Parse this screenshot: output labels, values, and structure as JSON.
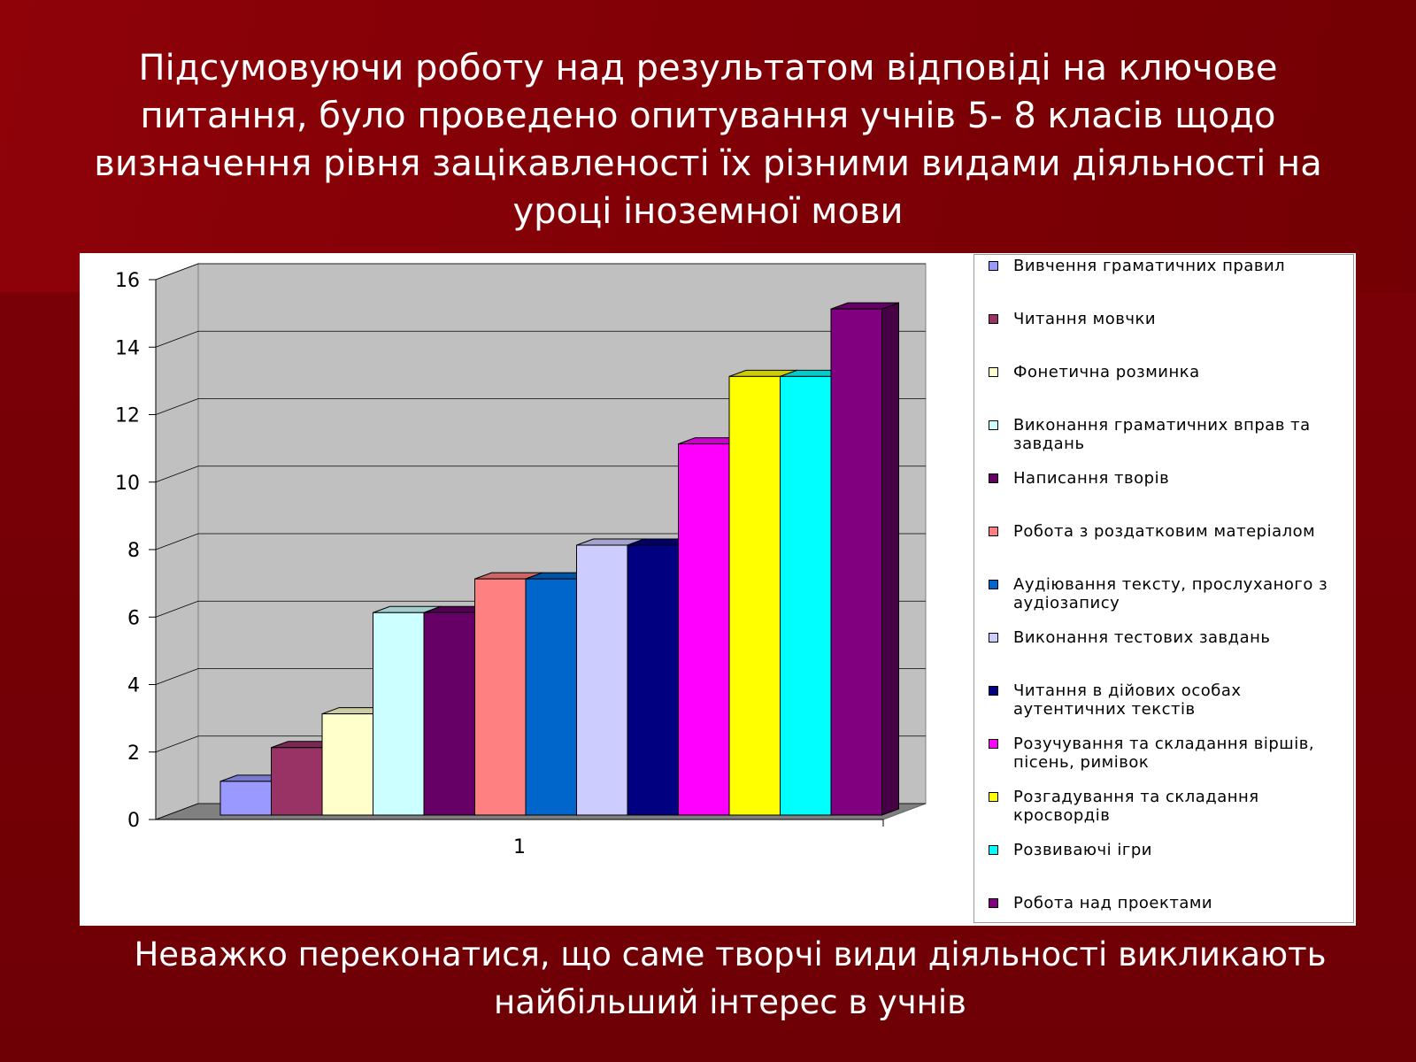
{
  "slide": {
    "title": "Підсумовуючи роботу над результатом відповіді на ключове питання, було проведено опитування учнів 5- 8 класів щодо визначення рівня зацікавленості їх різними видами діяльності на уроці іноземної мови",
    "conclusion": "Неважко переконатися, що саме творчі види діяльності викликають найбільший інтерес в учнів"
  },
  "chart_data": {
    "type": "bar",
    "style": "3d-clustered",
    "categories": [
      "1"
    ],
    "ylim": [
      0,
      16
    ],
    "y_ticks": [
      0,
      2,
      4,
      6,
      8,
      10,
      12,
      14,
      16
    ],
    "grid": true,
    "legend_position": "right",
    "series": [
      {
        "name": "Вивчення граматичних правил",
        "values": [
          1
        ],
        "color": "#9999ff"
      },
      {
        "name": "Читання мовчки",
        "values": [
          2
        ],
        "color": "#993366"
      },
      {
        "name": "Фонетична розминка",
        "values": [
          3
        ],
        "color": "#ffffcc"
      },
      {
        "name": "Виконання граматичних вправ та завдань",
        "values": [
          6
        ],
        "color": "#ccffff"
      },
      {
        "name": "Написання творів",
        "values": [
          6
        ],
        "color": "#660066"
      },
      {
        "name": "Робота з роздатковим матеріалом",
        "values": [
          7
        ],
        "color": "#ff8080"
      },
      {
        "name": "Аудіювання тексту, прослуханого з аудіозапису",
        "values": [
          7
        ],
        "color": "#0066cc"
      },
      {
        "name": "Виконання тестових завдань",
        "values": [
          8
        ],
        "color": "#ccccff"
      },
      {
        "name": "Читання в дійових особах аутентичних текстів",
        "values": [
          8
        ],
        "color": "#000080"
      },
      {
        "name": "Розучування та складання віршів, пісень, римівок",
        "values": [
          11
        ],
        "color": "#ff00ff"
      },
      {
        "name": "Розгадування та складання кросвордів",
        "values": [
          13
        ],
        "color": "#ffff00"
      },
      {
        "name": "Розвиваючі ігри",
        "values": [
          13
        ],
        "color": "#00ffff"
      },
      {
        "name": "Робота над проектами",
        "values": [
          15
        ],
        "color": "#800080"
      }
    ]
  }
}
